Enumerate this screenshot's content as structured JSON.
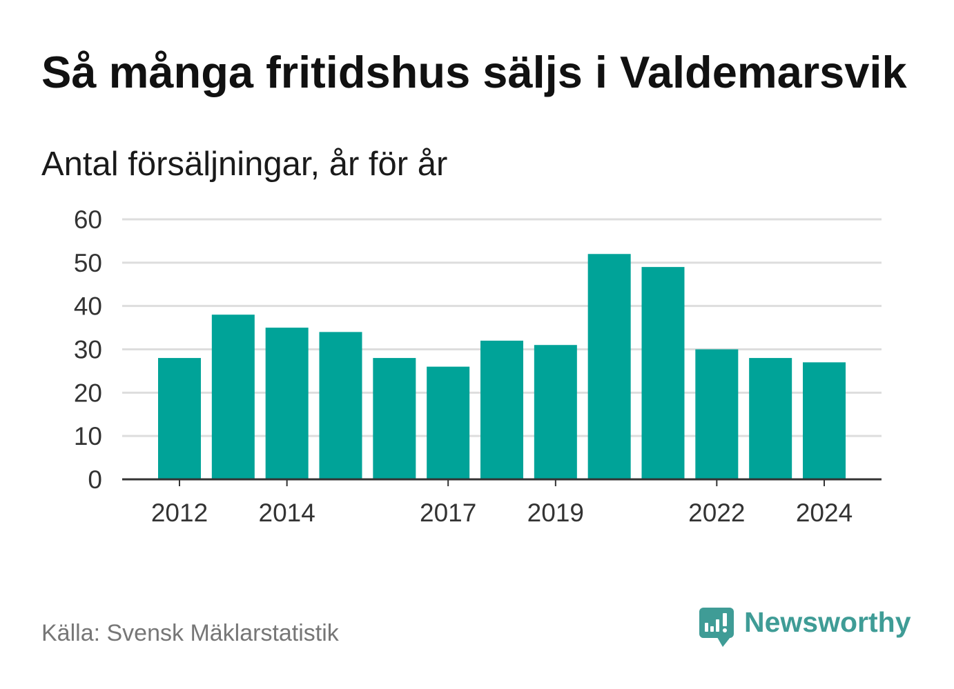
{
  "chart_data": {
    "type": "bar",
    "title": "Så många fritidshus säljs i Valdemarsvik",
    "subtitle": "Antal försäljningar, år för år",
    "x": [
      2012,
      2013,
      2014,
      2015,
      2016,
      2017,
      2018,
      2019,
      2020,
      2021,
      2022,
      2023,
      2024
    ],
    "values": [
      28,
      38,
      35,
      34,
      28,
      26,
      32,
      31,
      52,
      49,
      30,
      28,
      27
    ],
    "x_tick_labels": [
      "2012",
      "2014",
      "2017",
      "2019",
      "2022",
      "2024"
    ],
    "y_ticks": [
      0,
      10,
      20,
      30,
      40,
      50,
      60
    ],
    "ylim": [
      0,
      60
    ],
    "grid": true
  },
  "footer": {
    "source": "Källa: Svensk Mäklarstatistik"
  },
  "logo": {
    "wordmark": "Newsworthy",
    "icon": "chart-speech-bubble-icon"
  },
  "colors": {
    "bar": "#00a398",
    "gridline": "#dddddd",
    "axis": "#333333",
    "brand": "#3f9c96",
    "title": "#111111",
    "source": "#767676"
  }
}
